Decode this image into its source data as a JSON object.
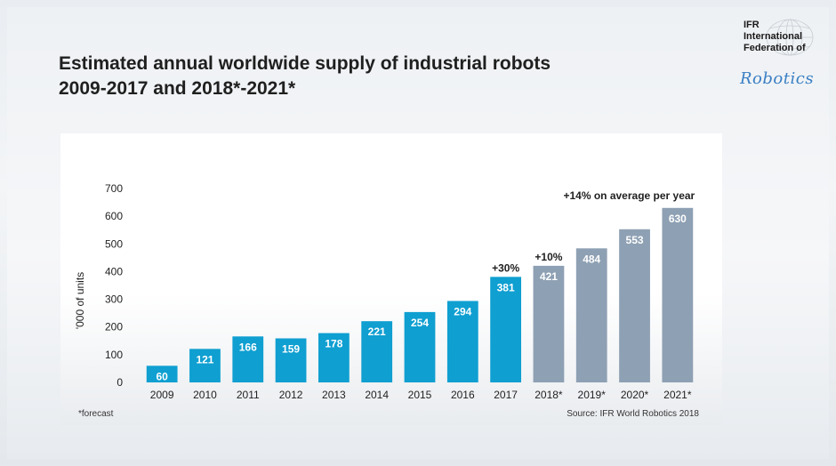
{
  "title": {
    "line1": "Estimated annual worldwide supply of industrial robots",
    "line2": "2009-2017 and 2018*-2021*"
  },
  "logo": {
    "line1": "IFR",
    "line2": "International",
    "line3": "Federation of",
    "line4": "Robotics"
  },
  "footnote": "*forecast",
  "source": "Source: IFR World Robotics 2018",
  "colors": {
    "actual": "#0f9fd1",
    "forecast": "#8ea0b3",
    "bar_label": "#ffffff",
    "text": "#1f1f1f"
  },
  "chart_data": {
    "type": "bar",
    "categories": [
      "2009",
      "2010",
      "2011",
      "2012",
      "2013",
      "2014",
      "2015",
      "2016",
      "2017",
      "2018*",
      "2019*",
      "2020*",
      "2021*"
    ],
    "values": [
      60,
      121,
      166,
      159,
      178,
      221,
      254,
      294,
      381,
      421,
      484,
      553,
      630
    ],
    "forecast_from_index": 9,
    "ylabel": "'000 of units",
    "ylim": [
      0,
      700
    ],
    "yticks": [
      0,
      100,
      200,
      300,
      400,
      500,
      600,
      700
    ],
    "grid": false,
    "annotations": [
      {
        "text": "+30%",
        "category": "2017"
      },
      {
        "text": "+10%",
        "category": "2018*"
      },
      {
        "text": "+14% on average per year",
        "category": "2021*"
      }
    ]
  }
}
